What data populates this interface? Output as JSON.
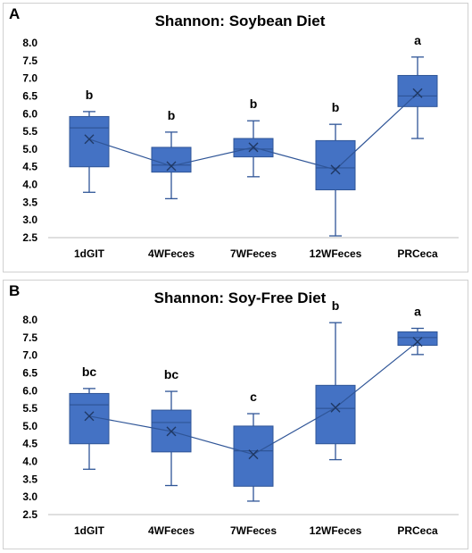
{
  "chart_data": [
    {
      "panel_label": "A",
      "type": "box",
      "title": "Shannon: Soybean Diet",
      "categories": [
        "1dGIT",
        "4WFeces",
        "7WFeces",
        "12WFeces",
        "PRCeca"
      ],
      "yticks": [
        "2.5",
        "3.0",
        "3.5",
        "4.0",
        "4.5",
        "5.0",
        "5.5",
        "6.0",
        "6.5",
        "7.0",
        "7.5",
        "8.0"
      ],
      "ylim": [
        2.5,
        8.0
      ],
      "grid": false,
      "legend": "none",
      "boxes": [
        {
          "category": "1dGIT",
          "min": 3.78,
          "q1": 4.5,
          "median": 5.6,
          "q3": 5.92,
          "max": 6.06,
          "mean": 5.28,
          "letter": "b"
        },
        {
          "category": "4WFeces",
          "min": 3.6,
          "q1": 4.35,
          "median": 4.55,
          "q3": 5.05,
          "max": 5.48,
          "mean": 4.52,
          "letter": "b"
        },
        {
          "category": "7WFeces",
          "min": 4.22,
          "q1": 4.78,
          "median": 5.0,
          "q3": 5.3,
          "max": 5.8,
          "mean": 5.05,
          "letter": "b"
        },
        {
          "category": "12WFeces",
          "min": 2.55,
          "q1": 3.85,
          "median": 4.47,
          "q3": 5.24,
          "max": 5.7,
          "mean": 4.42,
          "letter": "b"
        },
        {
          "category": "PRCeca",
          "min": 5.3,
          "q1": 6.2,
          "median": 6.5,
          "q3": 7.08,
          "max": 7.6,
          "mean": 6.58,
          "letter": "a"
        }
      ]
    },
    {
      "panel_label": "B",
      "type": "box",
      "title": "Shannon: Soy-Free Diet",
      "categories": [
        "1dGIT",
        "4WFeces",
        "7WFeces",
        "12WFeces",
        "PRCeca"
      ],
      "yticks": [
        "2.5",
        "3.0",
        "3.5",
        "4.0",
        "4.5",
        "5.0",
        "5.5",
        "6.0",
        "6.5",
        "7.0",
        "7.5",
        "8.0"
      ],
      "ylim": [
        2.5,
        8.0
      ],
      "grid": false,
      "legend": "none",
      "boxes": [
        {
          "category": "1dGIT",
          "min": 3.78,
          "q1": 4.5,
          "median": 5.6,
          "q3": 5.92,
          "max": 6.06,
          "mean": 5.28,
          "letter": "bc"
        },
        {
          "category": "4WFeces",
          "min": 3.32,
          "q1": 4.27,
          "median": 5.1,
          "q3": 5.45,
          "max": 5.98,
          "mean": 4.85,
          "letter": "bc"
        },
        {
          "category": "7WFeces",
          "min": 2.88,
          "q1": 3.3,
          "median": 4.3,
          "q3": 5.0,
          "max": 5.35,
          "mean": 4.2,
          "letter": "c"
        },
        {
          "category": "12WFeces",
          "min": 4.05,
          "q1": 4.5,
          "median": 5.5,
          "q3": 6.15,
          "max": 7.92,
          "mean": 5.52,
          "letter": "b"
        },
        {
          "category": "PRCeca",
          "min": 7.02,
          "q1": 7.28,
          "median": 7.5,
          "q3": 7.66,
          "max": 7.76,
          "mean": 7.38,
          "letter": "a"
        }
      ]
    }
  ],
  "colors": {
    "box_fill": "#4472c4",
    "box_stroke": "#2f5597",
    "whisker": "#2f5597",
    "mean_line": "#2f5597",
    "mean_marker": "#1f3864",
    "median": "#2f5597",
    "axis": "#bfbfbf",
    "text": "#000000"
  }
}
